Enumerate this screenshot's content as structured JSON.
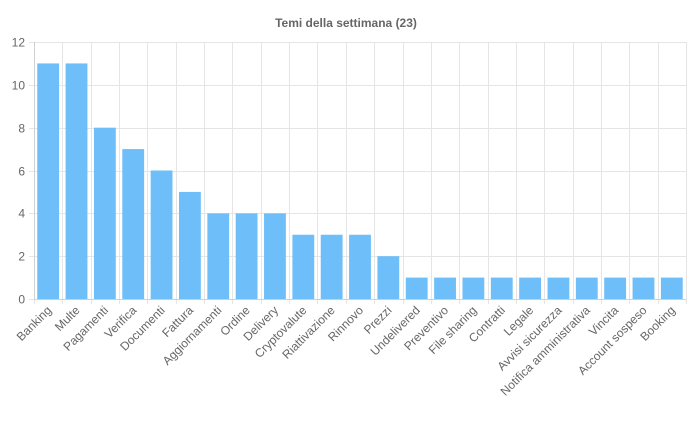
{
  "chart_data": {
    "type": "bar",
    "title": "Temi della settimana (23)",
    "xlabel": "",
    "ylabel": "",
    "ylim": [
      0,
      12
    ],
    "yticks": [
      0,
      2,
      4,
      6,
      8,
      10,
      12
    ],
    "grid": true,
    "legend": "none",
    "bar_color": "#6ebff9",
    "categories": [
      "Banking",
      "Multe",
      "Pagamenti",
      "Verifica",
      "Documenti",
      "Fattura",
      "Aggiornamenti",
      "Ordine",
      "Delivery",
      "Cryptovalute",
      "Riattivazione",
      "Rinnovo",
      "Prezzi",
      "Undelivered",
      "Preventivo",
      "File sharing",
      "Contratti",
      "Legale",
      "Avvisi sicurezza",
      "Notifica amministrativa",
      "Vincita",
      "Account sospeso",
      "Booking"
    ],
    "values": [
      11,
      11,
      8,
      7,
      6,
      5,
      4,
      4,
      4,
      3,
      3,
      3,
      2,
      1,
      1,
      1,
      1,
      1,
      1,
      1,
      1,
      1,
      1
    ]
  }
}
